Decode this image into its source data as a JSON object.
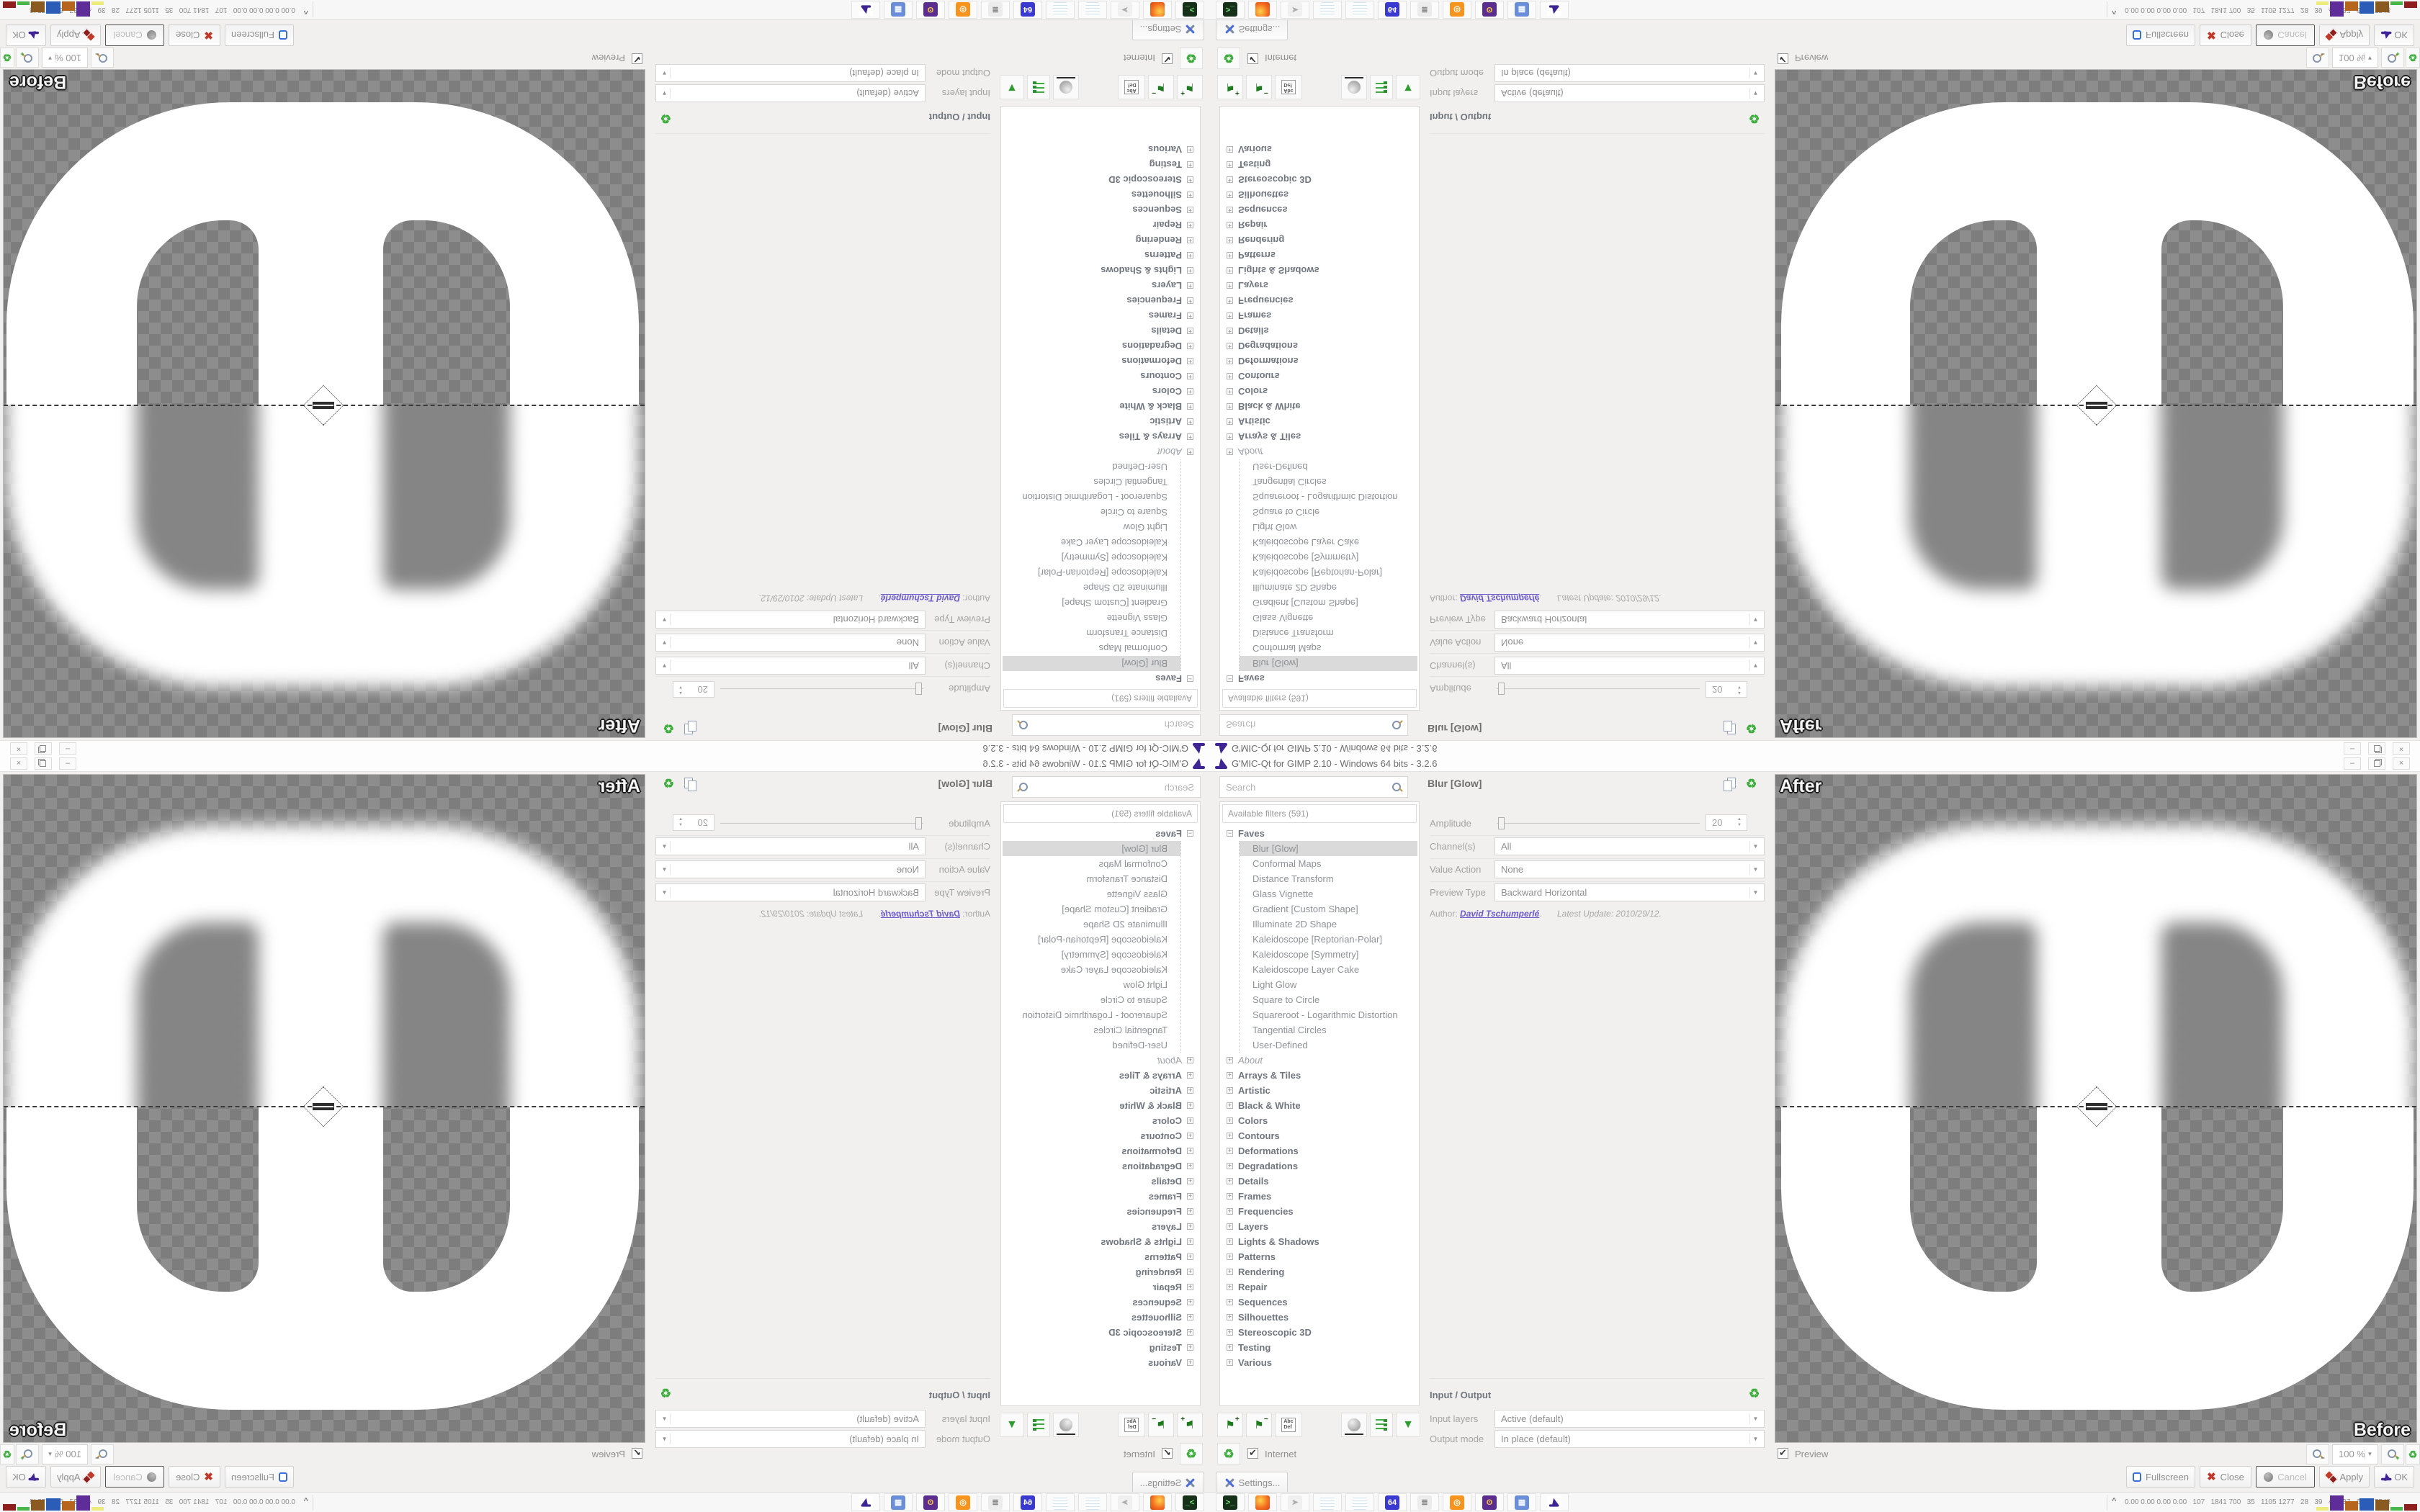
{
  "window": {
    "title": "G'MIC-Qt for GIMP 2.10 - Windows 64 bits - 3.2.6"
  },
  "filters": {
    "search_placeholder": "Search",
    "header": "Available filters (591)",
    "faves_label": "Faves",
    "selected_item": "Blur [Glow]",
    "fave_items": [
      "Blur [Glow]",
      "Conformal Maps",
      "Distance Transform",
      "Glass Vignette",
      "Gradient [Custom Shape]",
      "Illuminate 2D Shape",
      "Kaleidoscope [Reptorian-Polar]",
      "Kaleidoscope [Symmetry]",
      "Kaleidoscope Layer Cake",
      "Light Glow",
      "Square to Circle",
      "Squareroot - Logarithmic Distortion",
      "Tangential Circles",
      "User-Defined"
    ],
    "categories": [
      {
        "label": "About",
        "italic": true
      },
      {
        "label": "Arrays & Tiles"
      },
      {
        "label": "Artistic"
      },
      {
        "label": "Black & White"
      },
      {
        "label": "Colors"
      },
      {
        "label": "Contours"
      },
      {
        "label": "Deformations"
      },
      {
        "label": "Degradations"
      },
      {
        "label": "Details"
      },
      {
        "label": "Frames"
      },
      {
        "label": "Frequencies"
      },
      {
        "label": "Layers"
      },
      {
        "label": "Lights & Shadows"
      },
      {
        "label": "Patterns"
      },
      {
        "label": "Rendering"
      },
      {
        "label": "Repair"
      },
      {
        "label": "Sequences"
      },
      {
        "label": "Silhouettes"
      },
      {
        "label": "Stereoscopic 3D"
      },
      {
        "label": "Testing"
      },
      {
        "label": "Various"
      }
    ],
    "internet_label": "Internet",
    "rename_icon_top": "Abc",
    "rename_icon_bottom": "Def"
  },
  "params": {
    "title": "Blur [Glow]",
    "amplitude_label": "Amplitude",
    "amplitude_value": "20",
    "channels_label": "Channel(s)",
    "channels_value": "All",
    "value_action_label": "Value Action",
    "value_action_value": "None",
    "preview_type_label": "Preview Type",
    "preview_type_value": "Backward Horizontal",
    "author_label": "Author:",
    "author_name": "David Tschumperlé",
    "author_period": ".",
    "update_label": "Latest Update:",
    "update_value": "2010/29/12."
  },
  "io": {
    "header": "Input / Output",
    "input_label": "Input layers",
    "input_value": "Active (default)",
    "output_label": "Output mode",
    "output_value": "In place (default)"
  },
  "preview": {
    "after_label": "After",
    "before_label": "Before",
    "preview_checkbox": "Preview",
    "zoom_value": "100 %"
  },
  "actions": {
    "settings": "Settings...",
    "fullscreen": "Fullscreen",
    "close": "Close",
    "cancel": "Cancel",
    "apply": "Apply",
    "ok": "OK"
  },
  "taskbar": {
    "tray_chevron": "^",
    "tray_text": "0.00 0.00 0.00 0.00   107   1841 700   35   1105 1277   28   39   40   37   6000 7548",
    "icons": [
      {
        "name": "terminal-icon",
        "glyph": ">_",
        "fg": "#7be37b",
        "bg": "#16301a"
      },
      {
        "name": "firefox-icon",
        "glyph": "",
        "fg": "#fff",
        "bg": "radial-gradient(circle at 35% 35%, #ffd24a, #f26a1e 60%, #d64a12)"
      },
      {
        "name": "send-icon",
        "glyph": "➤",
        "fg": "#ababab",
        "bg": "#f0f0f0"
      },
      {
        "name": "notepad-icon",
        "glyph": "",
        "fg": "#666",
        "bg": "repeating-linear-gradient(#fdfdfd 0 3px, #cfe3f0 3px 4px)"
      },
      {
        "name": "notepad2-icon",
        "glyph": "",
        "fg": "#666",
        "bg": "repeating-linear-gradient(#fdfdfd 0 3px, #cfe3f0 3px 4px)"
      },
      {
        "name": "floppy64-icon",
        "glyph": "64",
        "fg": "#ffffff",
        "bg": "#3a3ad0"
      },
      {
        "name": "script-icon",
        "glyph": "≣",
        "fg": "#8a8a8a",
        "bg": "#ececec"
      },
      {
        "name": "blender-icon",
        "glyph": "◎",
        "fg": "#ffffff",
        "bg": "#f7941e"
      },
      {
        "name": "owl-icon",
        "glyph": "ʘ",
        "fg": "#f2c14a",
        "bg": "#5b2d8e"
      },
      {
        "name": "calculator-icon",
        "glyph": "▦",
        "fg": "#eef4ff",
        "bg": "#6a8fd8"
      },
      {
        "name": "gmic-tray-icon",
        "glyph": "",
        "fg": "#fff",
        "bg": "#ffffff",
        "hat": true
      }
    ],
    "bars": [
      {
        "c": "#ecec7a",
        "h": 5,
        "w": 22
      },
      {
        "c": "#5e2d99",
        "h": 21,
        "w": 26
      },
      {
        "c": "#b5651d",
        "h": 13,
        "w": 24
      },
      {
        "c": "#2b5cb8",
        "h": 17,
        "w": 26
      },
      {
        "c": "#8a5a20",
        "h": 15,
        "w": 26
      },
      {
        "c": "#49b649",
        "h": 5,
        "w": 22
      },
      {
        "c": "#8e1f1f",
        "h": 9,
        "w": 24
      }
    ]
  }
}
